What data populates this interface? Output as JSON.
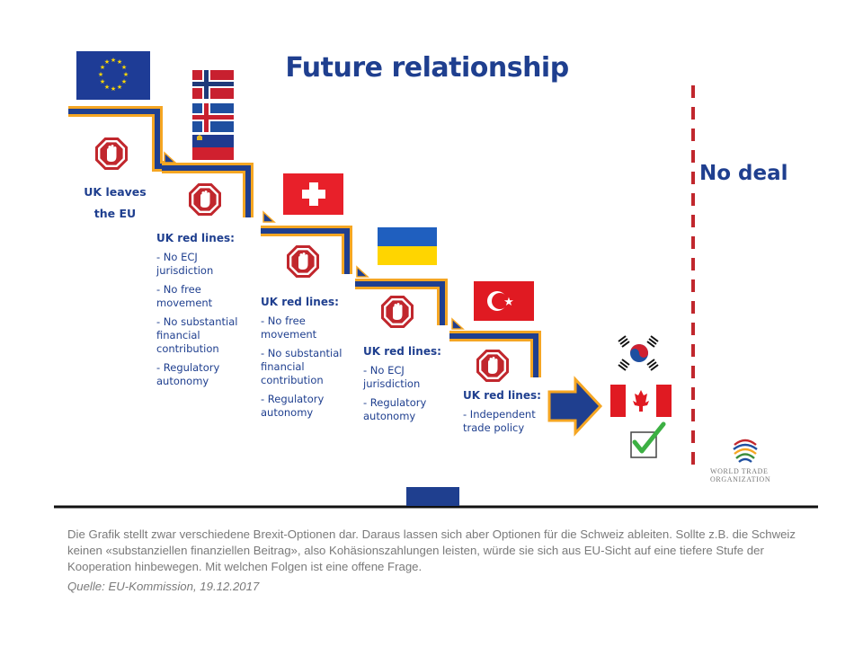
{
  "slide": {
    "title": "Future relationship",
    "no_deal": "No deal",
    "uk_leaves": [
      "UK leaves",
      "the EU"
    ],
    "steps": [
      {
        "heading": "UK red lines:",
        "items": [
          "- No ECJ jurisdiction",
          "- No free movement",
          "- No substantial financial contribution",
          "- Regulatory autonomy"
        ]
      },
      {
        "heading": "UK red lines:",
        "items": [
          "- No free movement",
          "- No substantial financial contribution",
          "- Regulatory autonomy"
        ]
      },
      {
        "heading": "UK red lines:",
        "items": [
          "- No ECJ jurisdiction",
          "- Regulatory autonomy"
        ]
      },
      {
        "heading": "UK red lines:",
        "items": [
          "- Independent trade policy"
        ]
      }
    ],
    "wto_label": [
      "WORLD TRADE",
      "ORGANIZATION"
    ],
    "flags": [
      "eu-flag",
      "norway-flag",
      "iceland-flag",
      "liechtenstein-flag",
      "switzerland-flag",
      "ukraine-flag",
      "turkey-flag",
      "south-korea-flag",
      "canada-flag"
    ]
  },
  "caption": {
    "text": "Die Grafik stellt zwar verschiedene Brexit-Optionen dar. Daraus lassen sich aber Optionen für die Schweiz ableiten. Sollte z.B. die Schweiz keinen «substanziellen finanziellen Beitrag», also Kohäsionszahlungen leisten, würde sie sich aus EU-Sicht auf eine tiefere Stufe der Kooperation hinbewegen. Mit welchen Folgen ist eine offene Frage.",
    "source": "Quelle: EU-Kommission, 19.12.2017"
  },
  "colors": {
    "navy": "#1f3f8f",
    "orange": "#f5a623",
    "stop_red": "#c1272d",
    "nodeal_line": "#c1272d"
  }
}
